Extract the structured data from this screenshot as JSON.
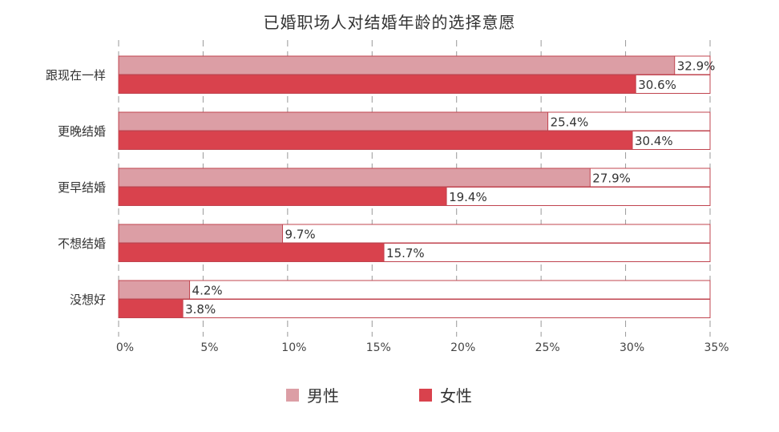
{
  "title": "已婚职场人对结婚年龄的选择意愿",
  "colors": {
    "male": "#dc9ea5",
    "female": "#d9424d",
    "outline": "#c0444f",
    "grid": "#999999"
  },
  "chart_data": {
    "type": "bar",
    "orientation": "horizontal",
    "title": "已婚职场人对结婚年龄的选择意愿",
    "categories": [
      "跟现在一样",
      "更晚结婚",
      "更早结婚",
      "不想结婚",
      "没想好"
    ],
    "series": [
      {
        "name": "男性",
        "values": [
          32.9,
          25.4,
          27.9,
          9.7,
          4.2
        ],
        "labels": [
          "32.9%",
          "25.4%",
          "27.9%",
          "9.7%",
          "4.2%"
        ]
      },
      {
        "name": "女性",
        "values": [
          30.6,
          30.4,
          19.4,
          15.7,
          3.8
        ],
        "labels": [
          "30.6%",
          "30.4%",
          "19.4%",
          "15.7%",
          "3.8%"
        ]
      }
    ],
    "xlim": [
      0,
      35
    ],
    "xticks": [
      "0%",
      "5%",
      "10%",
      "15%",
      "20%",
      "25%",
      "30%",
      "35%"
    ],
    "grid": true,
    "legend": "bottom"
  }
}
